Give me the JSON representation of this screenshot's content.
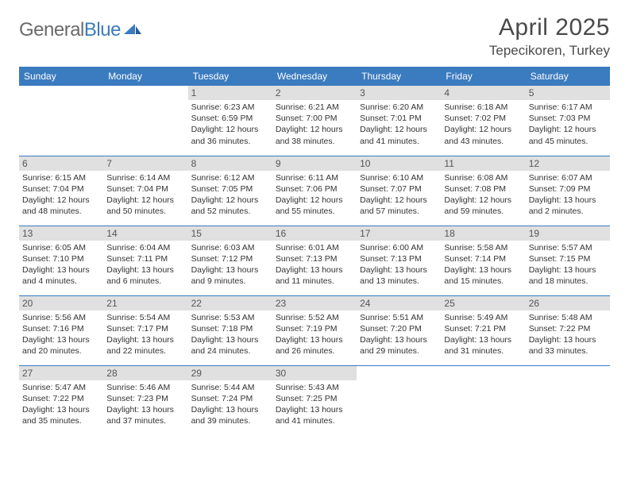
{
  "brand": {
    "part1": "General",
    "part2": "Blue"
  },
  "month_title": "April 2025",
  "location": "Tepecikoren, Turkey",
  "colors": {
    "header_bg": "#3b7bbf",
    "strip_bg": "#e0e0e0",
    "page_bg": "#ffffff",
    "text": "#333333",
    "logo_gray": "#6a6a6a"
  },
  "day_headers": [
    "Sunday",
    "Monday",
    "Tuesday",
    "Wednesday",
    "Thursday",
    "Friday",
    "Saturday"
  ],
  "weeks": [
    [
      {
        "n": "",
        "sr": "",
        "ss": "",
        "dl": ""
      },
      {
        "n": "",
        "sr": "",
        "ss": "",
        "dl": ""
      },
      {
        "n": "1",
        "sr": "Sunrise: 6:23 AM",
        "ss": "Sunset: 6:59 PM",
        "dl": "Daylight: 12 hours and 36 minutes."
      },
      {
        "n": "2",
        "sr": "Sunrise: 6:21 AM",
        "ss": "Sunset: 7:00 PM",
        "dl": "Daylight: 12 hours and 38 minutes."
      },
      {
        "n": "3",
        "sr": "Sunrise: 6:20 AM",
        "ss": "Sunset: 7:01 PM",
        "dl": "Daylight: 12 hours and 41 minutes."
      },
      {
        "n": "4",
        "sr": "Sunrise: 6:18 AM",
        "ss": "Sunset: 7:02 PM",
        "dl": "Daylight: 12 hours and 43 minutes."
      },
      {
        "n": "5",
        "sr": "Sunrise: 6:17 AM",
        "ss": "Sunset: 7:03 PM",
        "dl": "Daylight: 12 hours and 45 minutes."
      }
    ],
    [
      {
        "n": "6",
        "sr": "Sunrise: 6:15 AM",
        "ss": "Sunset: 7:04 PM",
        "dl": "Daylight: 12 hours and 48 minutes."
      },
      {
        "n": "7",
        "sr": "Sunrise: 6:14 AM",
        "ss": "Sunset: 7:04 PM",
        "dl": "Daylight: 12 hours and 50 minutes."
      },
      {
        "n": "8",
        "sr": "Sunrise: 6:12 AM",
        "ss": "Sunset: 7:05 PM",
        "dl": "Daylight: 12 hours and 52 minutes."
      },
      {
        "n": "9",
        "sr": "Sunrise: 6:11 AM",
        "ss": "Sunset: 7:06 PM",
        "dl": "Daylight: 12 hours and 55 minutes."
      },
      {
        "n": "10",
        "sr": "Sunrise: 6:10 AM",
        "ss": "Sunset: 7:07 PM",
        "dl": "Daylight: 12 hours and 57 minutes."
      },
      {
        "n": "11",
        "sr": "Sunrise: 6:08 AM",
        "ss": "Sunset: 7:08 PM",
        "dl": "Daylight: 12 hours and 59 minutes."
      },
      {
        "n": "12",
        "sr": "Sunrise: 6:07 AM",
        "ss": "Sunset: 7:09 PM",
        "dl": "Daylight: 13 hours and 2 minutes."
      }
    ],
    [
      {
        "n": "13",
        "sr": "Sunrise: 6:05 AM",
        "ss": "Sunset: 7:10 PM",
        "dl": "Daylight: 13 hours and 4 minutes."
      },
      {
        "n": "14",
        "sr": "Sunrise: 6:04 AM",
        "ss": "Sunset: 7:11 PM",
        "dl": "Daylight: 13 hours and 6 minutes."
      },
      {
        "n": "15",
        "sr": "Sunrise: 6:03 AM",
        "ss": "Sunset: 7:12 PM",
        "dl": "Daylight: 13 hours and 9 minutes."
      },
      {
        "n": "16",
        "sr": "Sunrise: 6:01 AM",
        "ss": "Sunset: 7:13 PM",
        "dl": "Daylight: 13 hours and 11 minutes."
      },
      {
        "n": "17",
        "sr": "Sunrise: 6:00 AM",
        "ss": "Sunset: 7:13 PM",
        "dl": "Daylight: 13 hours and 13 minutes."
      },
      {
        "n": "18",
        "sr": "Sunrise: 5:58 AM",
        "ss": "Sunset: 7:14 PM",
        "dl": "Daylight: 13 hours and 15 minutes."
      },
      {
        "n": "19",
        "sr": "Sunrise: 5:57 AM",
        "ss": "Sunset: 7:15 PM",
        "dl": "Daylight: 13 hours and 18 minutes."
      }
    ],
    [
      {
        "n": "20",
        "sr": "Sunrise: 5:56 AM",
        "ss": "Sunset: 7:16 PM",
        "dl": "Daylight: 13 hours and 20 minutes."
      },
      {
        "n": "21",
        "sr": "Sunrise: 5:54 AM",
        "ss": "Sunset: 7:17 PM",
        "dl": "Daylight: 13 hours and 22 minutes."
      },
      {
        "n": "22",
        "sr": "Sunrise: 5:53 AM",
        "ss": "Sunset: 7:18 PM",
        "dl": "Daylight: 13 hours and 24 minutes."
      },
      {
        "n": "23",
        "sr": "Sunrise: 5:52 AM",
        "ss": "Sunset: 7:19 PM",
        "dl": "Daylight: 13 hours and 26 minutes."
      },
      {
        "n": "24",
        "sr": "Sunrise: 5:51 AM",
        "ss": "Sunset: 7:20 PM",
        "dl": "Daylight: 13 hours and 29 minutes."
      },
      {
        "n": "25",
        "sr": "Sunrise: 5:49 AM",
        "ss": "Sunset: 7:21 PM",
        "dl": "Daylight: 13 hours and 31 minutes."
      },
      {
        "n": "26",
        "sr": "Sunrise: 5:48 AM",
        "ss": "Sunset: 7:22 PM",
        "dl": "Daylight: 13 hours and 33 minutes."
      }
    ],
    [
      {
        "n": "27",
        "sr": "Sunrise: 5:47 AM",
        "ss": "Sunset: 7:22 PM",
        "dl": "Daylight: 13 hours and 35 minutes."
      },
      {
        "n": "28",
        "sr": "Sunrise: 5:46 AM",
        "ss": "Sunset: 7:23 PM",
        "dl": "Daylight: 13 hours and 37 minutes."
      },
      {
        "n": "29",
        "sr": "Sunrise: 5:44 AM",
        "ss": "Sunset: 7:24 PM",
        "dl": "Daylight: 13 hours and 39 minutes."
      },
      {
        "n": "30",
        "sr": "Sunrise: 5:43 AM",
        "ss": "Sunset: 7:25 PM",
        "dl": "Daylight: 13 hours and 41 minutes."
      },
      {
        "n": "",
        "sr": "",
        "ss": "",
        "dl": ""
      },
      {
        "n": "",
        "sr": "",
        "ss": "",
        "dl": ""
      },
      {
        "n": "",
        "sr": "",
        "ss": "",
        "dl": ""
      }
    ]
  ]
}
